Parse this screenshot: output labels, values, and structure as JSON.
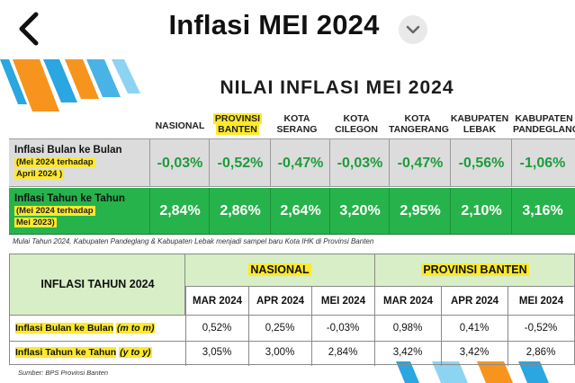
{
  "app": {
    "title": "Inflasi MEI 2024",
    "back_icon": "chevron-left-icon",
    "menu_icon": "chevron-down-icon"
  },
  "infographic": {
    "title": "NILAI INFLASI MEI 2024",
    "columns": [
      "NASIONAL",
      "PROVINSI\nBANTEN",
      "KOTA\nSERANG",
      "KOTA\nCILEGON",
      "KOTA\nTANGERANG",
      "KABUPATEN\nLEBAK",
      "KABUPATEN\nPANDEGLANG"
    ],
    "rows": [
      {
        "label": "Inflasi Bulan ke Bulan",
        "sub": [
          "(Mei 2024 terhadap",
          "April 2024 )"
        ],
        "values": [
          "-0,03%",
          "-0,52%",
          "-0,47%",
          "-0,03%",
          "-0,47%",
          "-0,56%",
          "-1,06%"
        ]
      },
      {
        "label": "Inflasi Tahun ke Tahun",
        "sub": [
          "(Mei 2024 terhadap",
          "Mei 2023)"
        ],
        "values": [
          "2,84%",
          "2,86%",
          "2,64%",
          "3,20%",
          "2,95%",
          "2,10%",
          "3,16%"
        ]
      }
    ],
    "note": "Mulai Tahun 2024, Kabupaten Pandeglang & Kabupaten Lebak menjadi sampel baru Kota IHK di Provinsi Banten",
    "table2": {
      "title": "INFLASI TAHUN 2024",
      "groups": [
        "NASIONAL",
        "PROVINSI BANTEN"
      ],
      "months": [
        "MAR 2024",
        "APR 2024",
        "MEI 2024",
        "MAR 2024",
        "APR 2024",
        "MEI 2024"
      ],
      "rows": [
        {
          "label": "Inflasi Bulan ke Bulan",
          "tag": "(m to m)",
          "values": [
            "0,52%",
            "0,25%",
            "-0,03%",
            "0,98%",
            "0,41%",
            "-0,52%"
          ]
        },
        {
          "label": "Inflasi Tahun ke Tahun",
          "tag": "(y to y)",
          "values": [
            "3,05%",
            "3,00%",
            "2,84%",
            "3,42%",
            "3,42%",
            "2,86%"
          ]
        }
      ]
    },
    "source": "Sumber: BPS Provinsi Banten",
    "colors": {
      "green": "#27b34b",
      "highlight": "#ffe92b",
      "orange": "#f7941d",
      "blue": "#2aa6e0"
    }
  }
}
